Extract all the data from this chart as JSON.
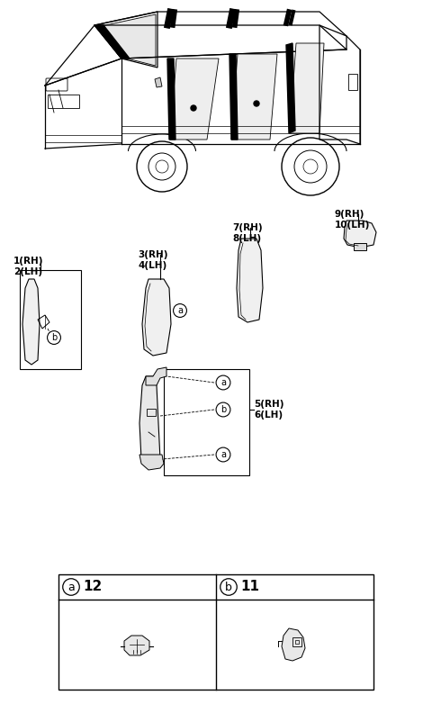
{
  "bg_color": "#ffffff",
  "fig_width": 4.8,
  "fig_height": 7.82,
  "dpi": 100,
  "lc": "#000000",
  "gray": "#888888",
  "labels": {
    "part1": "1(RH)\n2(LH)",
    "part3": "3(RH)\n4(LH)",
    "part5": "5(RH)\n6(LH)",
    "part7": "7(RH)\n8(LH)",
    "part9": "9(RH)\n10(LH)",
    "a": "a",
    "b": "b",
    "num12": "12",
    "num11": "11"
  }
}
